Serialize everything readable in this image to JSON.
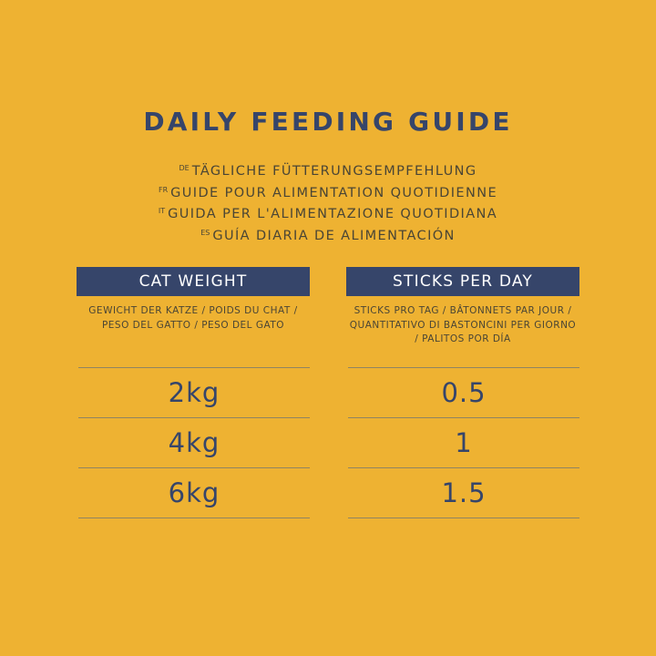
{
  "title": "DAILY FEEDING GUIDE",
  "translations": [
    {
      "lang": "DE",
      "text": "TÄGLICHE FÜTTERUNGSEMPFEHLUNG"
    },
    {
      "lang": "FR",
      "text": "GUIDE POUR ALIMENTATION QUOTIDIENNE"
    },
    {
      "lang": "IT",
      "text": "GUIDA PER L'ALIMENTAZIONE QUOTIDIANA"
    },
    {
      "lang": "ES",
      "text": "GUÍA DIARIA DE ALIMENTACIÓN"
    }
  ],
  "table": {
    "columns": [
      {
        "header": "CAT WEIGHT",
        "translation": "GEWICHT DER KATZE / POIDS DU CHAT / PESO DEL GATTO / PESO DEL GATO"
      },
      {
        "header": "STICKS PER DAY",
        "translation": "STICKS PRO TAG / BÂTONNETS PAR JOUR / QUANTITATIVO DI BASTONCINI PER GIORNO / PALITOS POR DÍA"
      }
    ],
    "rows": [
      {
        "weight": "2kg",
        "sticks": "0.5"
      },
      {
        "weight": "4kg",
        "sticks": "1"
      },
      {
        "weight": "6kg",
        "sticks": "1.5"
      }
    ]
  },
  "colors": {
    "background": "#EEB232",
    "navy": "#36456A"
  }
}
